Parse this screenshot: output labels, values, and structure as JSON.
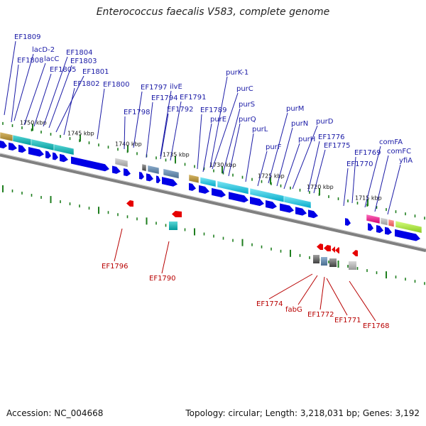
{
  "title": "Enterococcus faecalis V583, complete genome",
  "footer": {
    "accession": "Accession: NC_004668",
    "stats": "Topology: circular; Length: 3,218,031 bp; Genes: 3,192"
  },
  "colors": {
    "top_label": "#1a1aa6",
    "bottom_label": "#b80000",
    "forward_gene": "#0000e6",
    "reverse_gene": "#e60000",
    "backbone": "#808080",
    "tick": "#1e7e1e"
  },
  "ruler_labels": [
    "1750 kbp",
    "1745 kbp",
    "1740 kbp",
    "1735 kbp",
    "1730 kbp",
    "1725 kbp",
    "1720 kbp",
    "1715 kbp"
  ],
  "top_genes": [
    "EF1809",
    "lacD-2",
    "EF1808",
    "lacC",
    "EF1804",
    "EF1803",
    "EF1805",
    "EF1801",
    "EF1802",
    "EF1800",
    "EF1797",
    "ilvE",
    "EF1794",
    "EF1791",
    "EF1798",
    "EF1792",
    "purK-1",
    "purC",
    "EF1789",
    "purS",
    "purE",
    "purQ",
    "purM",
    "purL",
    "purN",
    "purD",
    "purH",
    "purF",
    "EF1776",
    "EF1775",
    "comFA",
    "EF1769",
    "comFC",
    "yfiA",
    "EF1770"
  ],
  "bottom_genes": [
    "EF1796",
    "EF1790",
    "EF1774",
    "fabG",
    "EF1772",
    "EF1771",
    "EF1768"
  ]
}
